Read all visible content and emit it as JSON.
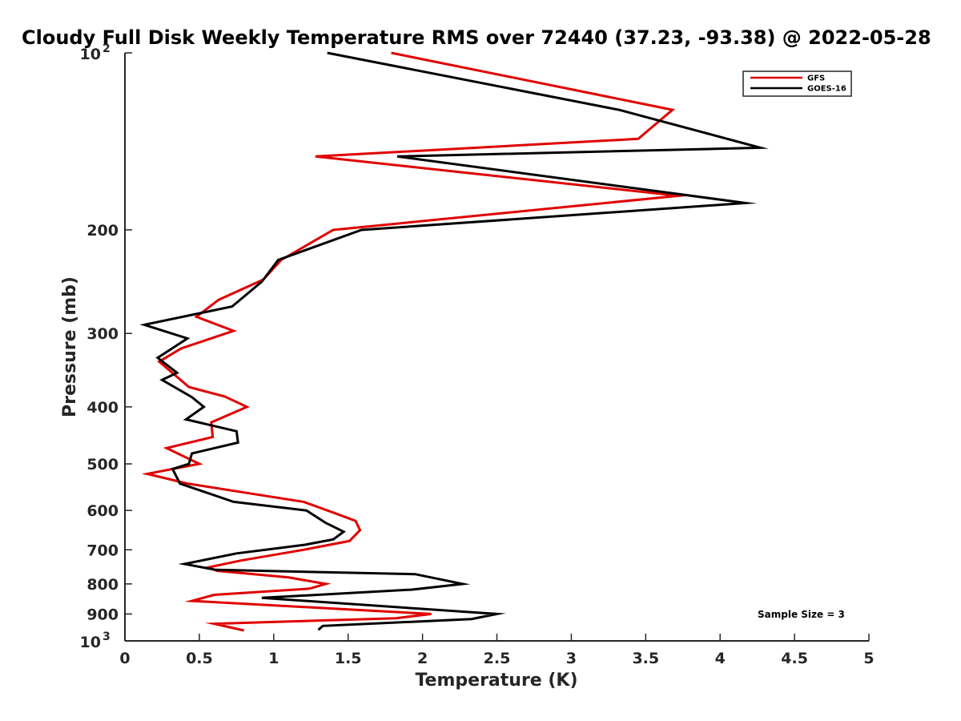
{
  "chart_data": {
    "type": "line",
    "title": "Cloudy Full Disk Weekly Temperature RMS over 72440 (37.23, -93.38) @ 2022-05-28",
    "xlabel": "Temperature (K)",
    "ylabel": "Pressure (mb)",
    "xlim": [
      0,
      5
    ],
    "ylim": [
      100,
      1000
    ],
    "y_scale": "log",
    "y_reversed": true,
    "x_ticks": [
      "0",
      "0.5",
      "1",
      "1.5",
      "2",
      "2.5",
      "3",
      "3.5",
      "4",
      "4.5",
      "5"
    ],
    "y_ticks": [
      {
        "value": 100,
        "base": "10",
        "exp": "2"
      },
      {
        "value": 200,
        "text": "200"
      },
      {
        "value": 300,
        "text": "300"
      },
      {
        "value": 400,
        "text": "400"
      },
      {
        "value": 500,
        "text": "500"
      },
      {
        "value": 600,
        "text": "600"
      },
      {
        "value": 700,
        "text": "700"
      },
      {
        "value": 800,
        "text": "800"
      },
      {
        "value": 900,
        "text": "900"
      },
      {
        "value": 1000,
        "base": "10",
        "exp": "3"
      }
    ],
    "grid": false,
    "legend_position": "top-right",
    "annotation": "Sample Size = 3",
    "series": [
      {
        "name": "GFS",
        "color": "#e00000",
        "points": [
          [
            1.79,
            100
          ],
          [
            3.68,
            125
          ],
          [
            3.45,
            140
          ],
          [
            1.28,
            150
          ],
          [
            3.72,
            175
          ],
          [
            1.4,
            200
          ],
          [
            1.05,
            225
          ],
          [
            0.93,
            243
          ],
          [
            0.63,
            263
          ],
          [
            0.48,
            281
          ],
          [
            0.73,
            297
          ],
          [
            0.38,
            318
          ],
          [
            0.23,
            335
          ],
          [
            0.33,
            352
          ],
          [
            0.43,
            370
          ],
          [
            0.67,
            384
          ],
          [
            0.82,
            400
          ],
          [
            0.58,
            425
          ],
          [
            0.59,
            450
          ],
          [
            0.28,
            470
          ],
          [
            0.5,
            500
          ],
          [
            0.15,
            520
          ],
          [
            0.42,
            540
          ],
          [
            1.2,
            580
          ],
          [
            1.4,
            605
          ],
          [
            1.55,
            625
          ],
          [
            1.58,
            648
          ],
          [
            1.51,
            676
          ],
          [
            1.2,
            700
          ],
          [
            0.78,
            730
          ],
          [
            0.56,
            750
          ],
          [
            0.62,
            760
          ],
          [
            1.1,
            780
          ],
          [
            1.35,
            800
          ],
          [
            1.24,
            815
          ],
          [
            0.6,
            835
          ],
          [
            0.45,
            855
          ],
          [
            2.06,
            900
          ],
          [
            1.82,
            915
          ],
          [
            0.6,
            935
          ],
          [
            0.8,
            960
          ]
        ]
      },
      {
        "name": "GOES-16",
        "color": "#000000",
        "points": [
          [
            1.36,
            100
          ],
          [
            3.32,
            125
          ],
          [
            4.27,
            145
          ],
          [
            1.83,
            150
          ],
          [
            4.17,
            180
          ],
          [
            1.59,
            200
          ],
          [
            1.03,
            225
          ],
          [
            0.92,
            245
          ],
          [
            0.72,
            270
          ],
          [
            0.13,
            290
          ],
          [
            0.42,
            306
          ],
          [
            0.22,
            330
          ],
          [
            0.35,
            350
          ],
          [
            0.25,
            360
          ],
          [
            0.45,
            385
          ],
          [
            0.53,
            400
          ],
          [
            0.41,
            420
          ],
          [
            0.75,
            440
          ],
          [
            0.76,
            460
          ],
          [
            0.45,
            480
          ],
          [
            0.43,
            500
          ],
          [
            0.32,
            510
          ],
          [
            0.37,
            540
          ],
          [
            0.73,
            580
          ],
          [
            1.22,
            600
          ],
          [
            1.35,
            630
          ],
          [
            1.47,
            652
          ],
          [
            1.4,
            672
          ],
          [
            1.2,
            687
          ],
          [
            0.75,
            710
          ],
          [
            0.4,
            740
          ],
          [
            0.61,
            757
          ],
          [
            1.95,
            770
          ],
          [
            2.27,
            800
          ],
          [
            1.93,
            818
          ],
          [
            0.92,
            845
          ],
          [
            2.5,
            900
          ],
          [
            2.33,
            918
          ],
          [
            1.33,
            943
          ],
          [
            1.3,
            958
          ]
        ]
      }
    ]
  }
}
